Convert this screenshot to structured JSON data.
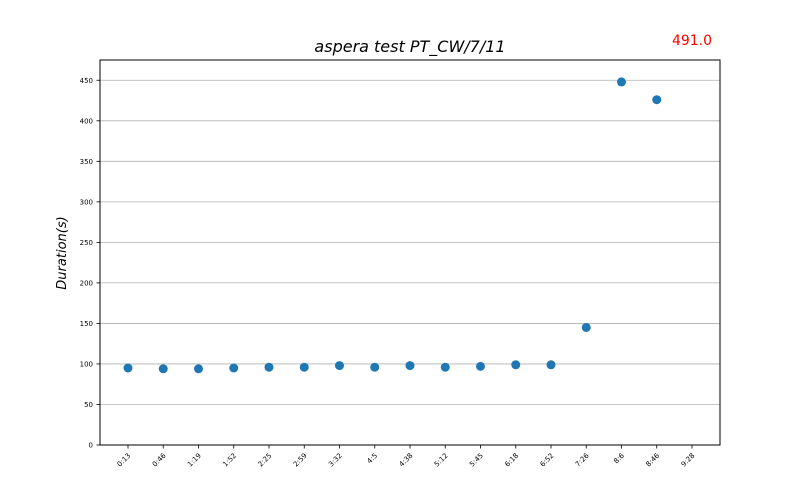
{
  "chart_data": {
    "type": "scatter",
    "title": "aspera test   PT_CW/7/11",
    "xlabel": "",
    "ylabel": "Duration(s)",
    "ylim": [
      0,
      475
    ],
    "yticks": [
      0,
      50,
      100,
      150,
      200,
      250,
      300,
      350,
      400,
      450
    ],
    "categories": [
      "0:13",
      "0:46",
      "1:19",
      "1:52",
      "2:25",
      "2:59",
      "3:32",
      "4:5",
      "4:38",
      "5:12",
      "5:45",
      "6:18",
      "6:52",
      "7:26",
      "8:6",
      "8:46",
      "9:28"
    ],
    "values": [
      95,
      94,
      94,
      95,
      96,
      96,
      98,
      96,
      98,
      96,
      97,
      99,
      99,
      145,
      448,
      426,
      null
    ],
    "grid": "y",
    "series_color": "#1f77b4",
    "annotation": {
      "text": "491.0",
      "color": "#ff0000"
    }
  }
}
